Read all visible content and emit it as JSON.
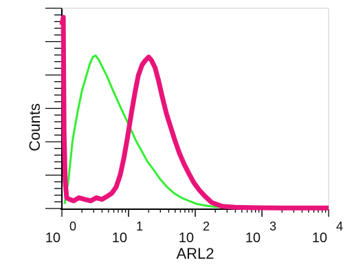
{
  "chart_data": {
    "type": "line",
    "xlabel": "ARL2",
    "ylabel": "Counts",
    "xscale": "log",
    "xlim": [
      1,
      10000
    ],
    "grid": false,
    "x_ticks": [
      {
        "base": "10",
        "exp": "0"
      },
      {
        "base": "10",
        "exp": "1"
      },
      {
        "base": "10",
        "exp": "2"
      },
      {
        "base": "10",
        "exp": "3"
      },
      {
        "base": "10",
        "exp": "4"
      }
    ],
    "series": [
      {
        "color": "#33ee33",
        "x": [
          1.1,
          1.25,
          1.45,
          1.7,
          2.0,
          2.3,
          2.6,
          2.9,
          3.2,
          3.6,
          4.1,
          4.8,
          5.6,
          6.6,
          7.8,
          9.3,
          11,
          13,
          16,
          19,
          24,
          30,
          38,
          48,
          62,
          80,
          105,
          140,
          200,
          300,
          500,
          1000,
          3000,
          10000
        ],
        "y": [
          3,
          18,
          45,
          62,
          77,
          86,
          94,
          99,
          100,
          97,
          92,
          86,
          79,
          72,
          65,
          58,
          51,
          44,
          37,
          31,
          25,
          19,
          14,
          10,
          7,
          5,
          3,
          2,
          1,
          1,
          0,
          0,
          0,
          0
        ]
      },
      {
        "color": "#e8147a",
        "x": [
          1.0,
          1.05,
          1.08,
          1.12,
          1.18,
          1.3,
          1.5,
          1.8,
          2.2,
          2.7,
          3.3,
          4.0,
          4.8,
          5.6,
          6.5,
          7.5,
          8.5,
          9.6,
          11,
          12.5,
          14,
          16,
          18,
          20,
          22,
          25,
          28,
          32,
          37,
          43,
          50,
          58,
          68,
          80,
          95,
          115,
          140,
          175,
          250,
          400,
          800,
          2000,
          10000
        ],
        "y": [
          120,
          125,
          50,
          18,
          7,
          6,
          5,
          7,
          6,
          5,
          7,
          6,
          8,
          10,
          14,
          22,
          33,
          46,
          62,
          76,
          87,
          94,
          97,
          99,
          97,
          92,
          84,
          73,
          62,
          53,
          44,
          36,
          29,
          23,
          17,
          12,
          8,
          4,
          1.5,
          0.8,
          0.5,
          0.3,
          0.3
        ]
      }
    ]
  }
}
